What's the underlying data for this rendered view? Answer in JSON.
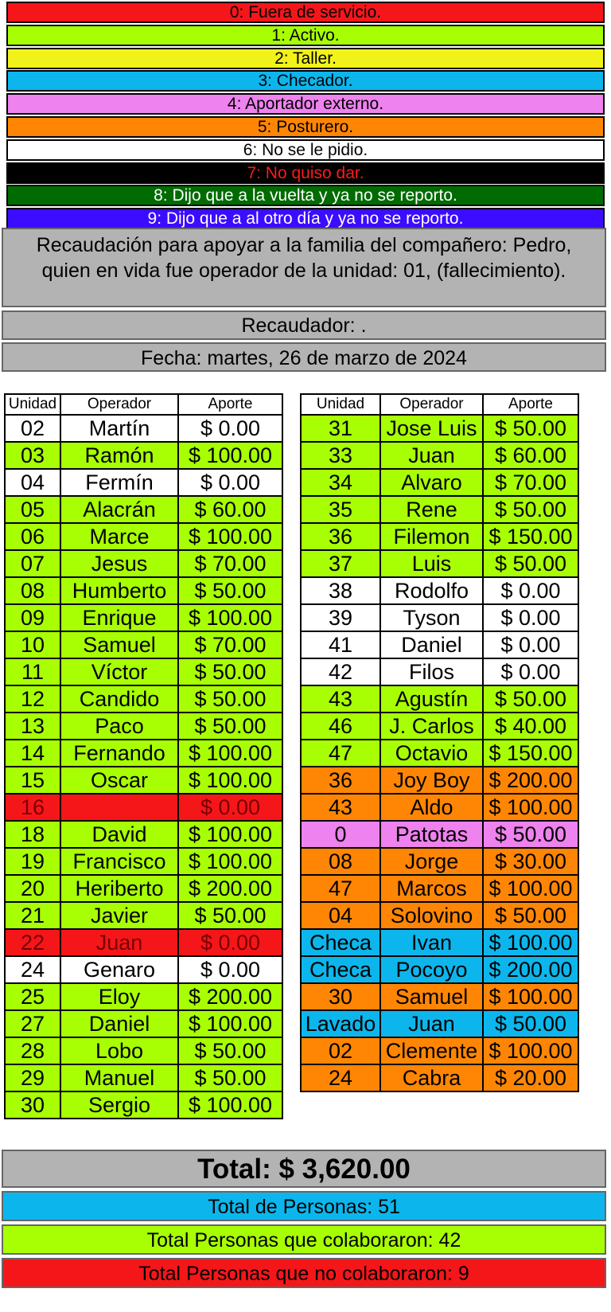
{
  "colors": {
    "0": "#f5161a",
    "1": "#a8ff04",
    "2": "#f2f21b",
    "3": "#0cb6ec",
    "4": "#ee82ee",
    "5": "#ff8604",
    "6": "#ffffff",
    "7": "#000000",
    "8": "#006b00",
    "9": "#3b0cff"
  },
  "legend": [
    {
      "code": "0",
      "label": "0: Fuera de servicio.",
      "text_color": "#000000"
    },
    {
      "code": "1",
      "label": "1: Activo.",
      "text_color": "#000000"
    },
    {
      "code": "2",
      "label": "2: Taller.",
      "text_color": "#000000"
    },
    {
      "code": "3",
      "label": "3: Checador.",
      "text_color": "#000000"
    },
    {
      "code": "4",
      "label": "4: Aportador externo.",
      "text_color": "#000000"
    },
    {
      "code": "5",
      "label": "5: Posturero.",
      "text_color": "#000000"
    },
    {
      "code": "6",
      "label": "6: No se le pidio.",
      "text_color": "#000000"
    },
    {
      "code": "7",
      "label": "7: No quiso dar.",
      "text_color": "#ff1a1a"
    },
    {
      "code": "8",
      "label": "8: Dijo que a la vuelta y ya no se reporto.",
      "text_color": "#ffffff"
    },
    {
      "code": "9",
      "label": "9: Dijo que a al otro día y ya no se reporto.",
      "text_color": "#ffffff"
    }
  ],
  "header": {
    "description": "Recaudación para apoyar a la familia del compañero: Pedro, quien en vida fue operador de la unidad: 01, (fallecimiento).",
    "collector": "Recaudador: .",
    "date": "Fecha: martes, 26 de marzo de 2024"
  },
  "columns": [
    "Unidad",
    "Operador",
    "Aporte"
  ],
  "left_rows": [
    {
      "unidad": "02",
      "operador": "Martín",
      "aporte": "$ 0.00",
      "code": "6"
    },
    {
      "unidad": "03",
      "operador": "Ramón",
      "aporte": "$ 100.00",
      "code": "1"
    },
    {
      "unidad": "04",
      "operador": "Fermín",
      "aporte": "$ 0.00",
      "code": "6"
    },
    {
      "unidad": "05",
      "operador": "Alacrán",
      "aporte": "$ 60.00",
      "code": "1"
    },
    {
      "unidad": "06",
      "operador": "Marce",
      "aporte": "$ 100.00",
      "code": "1"
    },
    {
      "unidad": "07",
      "operador": "Jesus",
      "aporte": "$ 70.00",
      "code": "1"
    },
    {
      "unidad": "08",
      "operador": "Humberto",
      "aporte": "$ 50.00",
      "code": "1"
    },
    {
      "unidad": "09",
      "operador": "Enrique",
      "aporte": "$ 100.00",
      "code": "1"
    },
    {
      "unidad": "10",
      "operador": "Samuel",
      "aporte": "$ 70.00",
      "code": "1"
    },
    {
      "unidad": "11",
      "operador": "Víctor",
      "aporte": "$ 50.00",
      "code": "1"
    },
    {
      "unidad": "12",
      "operador": "Candido",
      "aporte": "$ 50.00",
      "code": "1"
    },
    {
      "unidad": "13",
      "operador": "Paco",
      "aporte": "$ 50.00",
      "code": "1"
    },
    {
      "unidad": "14",
      "operador": "Fernando",
      "aporte": "$ 100.00",
      "code": "1"
    },
    {
      "unidad": "15",
      "operador": "Oscar",
      "aporte": "$ 100.00",
      "code": "1"
    },
    {
      "unidad": "16",
      "operador": "",
      "aporte": "$ 0.00",
      "code": "0"
    },
    {
      "unidad": "18",
      "operador": "David",
      "aporte": "$ 100.00",
      "code": "1"
    },
    {
      "unidad": "19",
      "operador": "Francisco",
      "aporte": "$ 100.00",
      "code": "1"
    },
    {
      "unidad": "20",
      "operador": "Heriberto",
      "aporte": "$ 200.00",
      "code": "1"
    },
    {
      "unidad": "21",
      "operador": "Javier",
      "aporte": "$ 50.00",
      "code": "1"
    },
    {
      "unidad": "22",
      "operador": "Juan",
      "aporte": "$ 0.00",
      "code": "0"
    },
    {
      "unidad": "24",
      "operador": "Genaro",
      "aporte": "$ 0.00",
      "code": "6"
    },
    {
      "unidad": "25",
      "operador": "Eloy",
      "aporte": "$ 200.00",
      "code": "1"
    },
    {
      "unidad": "27",
      "operador": "Daniel",
      "aporte": "$ 100.00",
      "code": "1"
    },
    {
      "unidad": "28",
      "operador": "Lobo",
      "aporte": "$ 50.00",
      "code": "1"
    },
    {
      "unidad": "29",
      "operador": "Manuel",
      "aporte": "$ 50.00",
      "code": "1"
    },
    {
      "unidad": "30",
      "operador": "Sergio",
      "aporte": "$ 100.00",
      "code": "1"
    }
  ],
  "right_rows": [
    {
      "unidad": "31",
      "operador": "Jose Luis",
      "aporte": "$ 50.00",
      "code": "1"
    },
    {
      "unidad": "33",
      "operador": "Juan",
      "aporte": "$ 60.00",
      "code": "1"
    },
    {
      "unidad": "34",
      "operador": "Alvaro",
      "aporte": "$ 70.00",
      "code": "1"
    },
    {
      "unidad": "35",
      "operador": "Rene",
      "aporte": "$ 50.00",
      "code": "1"
    },
    {
      "unidad": "36",
      "operador": "Filemon",
      "aporte": "$ 150.00",
      "code": "1"
    },
    {
      "unidad": "37",
      "operador": "Luis",
      "aporte": "$ 50.00",
      "code": "1"
    },
    {
      "unidad": "38",
      "operador": "Rodolfo",
      "aporte": "$ 0.00",
      "code": "6"
    },
    {
      "unidad": "39",
      "operador": "Tyson",
      "aporte": "$ 0.00",
      "code": "6"
    },
    {
      "unidad": "41",
      "operador": "Daniel",
      "aporte": "$ 0.00",
      "code": "6"
    },
    {
      "unidad": "42",
      "operador": "Filos",
      "aporte": "$ 0.00",
      "code": "6"
    },
    {
      "unidad": "43",
      "operador": "Agustín",
      "aporte": "$ 50.00",
      "code": "1"
    },
    {
      "unidad": "46",
      "operador": "J. Carlos",
      "aporte": "$ 40.00",
      "code": "1"
    },
    {
      "unidad": "47",
      "operador": "Octavio",
      "aporte": "$ 150.00",
      "code": "1"
    },
    {
      "unidad": "36",
      "operador": "Joy Boy",
      "aporte": "$ 200.00",
      "code": "5"
    },
    {
      "unidad": "43",
      "operador": "Aldo",
      "aporte": "$ 100.00",
      "code": "5"
    },
    {
      "unidad": "0",
      "operador": "Patotas",
      "aporte": "$ 50.00",
      "code": "4"
    },
    {
      "unidad": "08",
      "operador": "Jorge",
      "aporte": "$ 30.00",
      "code": "5"
    },
    {
      "unidad": "47",
      "operador": "Marcos",
      "aporte": "$ 100.00",
      "code": "5"
    },
    {
      "unidad": "04",
      "operador": "Solovino",
      "aporte": "$ 50.00",
      "code": "5"
    },
    {
      "unidad": "Checa",
      "operador": "Ivan",
      "aporte": "$ 100.00",
      "code": "3"
    },
    {
      "unidad": "Checa",
      "operador": "Pocoyo",
      "aporte": "$ 200.00",
      "code": "3"
    },
    {
      "unidad": "30",
      "operador": "Samuel",
      "aporte": "$ 100.00",
      "code": "5"
    },
    {
      "unidad": "Lavado",
      "operador": "Juan",
      "aporte": "$ 50.00",
      "code": "3"
    },
    {
      "unidad": "02",
      "operador": "Clemente",
      "aporte": "$ 100.00",
      "code": "5"
    },
    {
      "unidad": "24",
      "operador": "Cabra",
      "aporte": "$ 20.00",
      "code": "5"
    }
  ],
  "totals": {
    "total": "Total: $ 3,620.00",
    "personas": "Total de Personas: 51",
    "colaboraron": "Total Personas que colaboraron: 42",
    "no_colaboraron": "Total Personas que no colaboraron: 9"
  }
}
